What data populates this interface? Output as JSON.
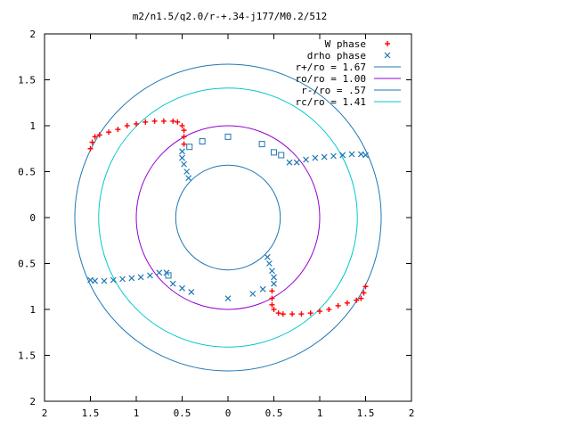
{
  "chart_data": {
    "type": "scatter",
    "title": "m2/n1.5/q2.0/r-+.34-j177/M0.2/512",
    "xlabel": "",
    "ylabel": "",
    "xlim": [
      -2,
      2
    ],
    "ylim": [
      -2,
      2
    ],
    "grid": false,
    "legend_position": "top-right",
    "xticks": [
      -2,
      -1.5,
      -1,
      -0.5,
      0,
      0.5,
      1,
      1.5,
      2
    ],
    "xtick_labels": [
      "2",
      "1.5",
      "1",
      "0.5",
      "0",
      "0.5",
      "1",
      "1.5",
      "2"
    ],
    "yticks": [
      2,
      1.5,
      1,
      0.5,
      0,
      -0.5,
      -1,
      -1.5,
      -2
    ],
    "ytick_labels": [
      "2",
      "1.5",
      "1",
      "0.5",
      "0",
      "0.5",
      "1",
      "1.5",
      "2"
    ],
    "circles": [
      {
        "name": "r+/ro = 1.67",
        "radius": 1.67,
        "color": "#1f77b4"
      },
      {
        "name": "ro/ro = 1.00",
        "radius": 1.0,
        "color": "#9400d3"
      },
      {
        "name": "r-/ro = .57",
        "radius": 0.57,
        "color": "#1f77b4"
      },
      {
        "name": "rc/ro = 1.41",
        "radius": 1.41,
        "color": "#00c8c8"
      }
    ],
    "series": [
      {
        "name": "W phase",
        "marker": "plus",
        "color": "#ff0000",
        "points": [
          [
            -1.5,
            0.75
          ],
          [
            -1.48,
            0.82
          ],
          [
            -1.45,
            0.88
          ],
          [
            -1.4,
            0.9
          ],
          [
            -1.3,
            0.93
          ],
          [
            -1.2,
            0.96
          ],
          [
            -1.1,
            1.0
          ],
          [
            -1.0,
            1.02
          ],
          [
            -0.9,
            1.04
          ],
          [
            -0.8,
            1.05
          ],
          [
            -0.7,
            1.05
          ],
          [
            -0.6,
            1.05
          ],
          [
            -0.55,
            1.04
          ],
          [
            -0.5,
            1.0
          ],
          [
            -0.48,
            0.95
          ],
          [
            -0.48,
            0.88
          ],
          [
            -0.48,
            0.8
          ],
          [
            1.5,
            -0.75
          ],
          [
            1.48,
            -0.82
          ],
          [
            1.45,
            -0.88
          ],
          [
            1.4,
            -0.9
          ],
          [
            1.3,
            -0.93
          ],
          [
            1.2,
            -0.96
          ],
          [
            1.1,
            -1.0
          ],
          [
            1.0,
            -1.02
          ],
          [
            0.9,
            -1.04
          ],
          [
            0.8,
            -1.05
          ],
          [
            0.7,
            -1.05
          ],
          [
            0.6,
            -1.05
          ],
          [
            0.55,
            -1.04
          ],
          [
            0.5,
            -1.0
          ],
          [
            0.48,
            -0.95
          ],
          [
            0.48,
            -0.88
          ],
          [
            0.48,
            -0.8
          ]
        ]
      },
      {
        "name": "drho phase",
        "marker": "cross",
        "color": "#1f77b4",
        "points": [
          [
            -0.5,
            0.72
          ],
          [
            -0.5,
            0.65
          ],
          [
            -0.48,
            0.58
          ],
          [
            -0.45,
            0.5
          ],
          [
            -0.43,
            0.43
          ],
          [
            0.67,
            0.6
          ],
          [
            0.75,
            0.6
          ],
          [
            0.85,
            0.63
          ],
          [
            0.95,
            0.65
          ],
          [
            1.05,
            0.66
          ],
          [
            1.15,
            0.67
          ],
          [
            1.25,
            0.68
          ],
          [
            1.35,
            0.69
          ],
          [
            1.45,
            0.69
          ],
          [
            1.5,
            0.68
          ],
          [
            0.5,
            -0.72
          ],
          [
            0.5,
            -0.65
          ],
          [
            0.48,
            -0.58
          ],
          [
            0.45,
            -0.5
          ],
          [
            0.43,
            -0.43
          ],
          [
            -0.67,
            -0.6
          ],
          [
            -0.75,
            -0.6
          ],
          [
            -0.85,
            -0.63
          ],
          [
            -0.95,
            -0.65
          ],
          [
            -1.05,
            -0.66
          ],
          [
            -1.15,
            -0.67
          ],
          [
            -1.25,
            -0.68
          ],
          [
            -1.35,
            -0.69
          ],
          [
            -1.45,
            -0.69
          ],
          [
            -1.5,
            -0.68
          ],
          [
            -0.6,
            -0.72
          ],
          [
            -0.5,
            -0.77
          ],
          [
            -0.4,
            -0.81
          ],
          [
            0,
            -0.88
          ],
          [
            0.27,
            -0.83
          ],
          [
            0.38,
            -0.78
          ]
        ]
      },
      {
        "name": "",
        "marker": "square",
        "color": "#1f77b4",
        "points": [
          [
            -0.42,
            0.77
          ],
          [
            -0.28,
            0.83
          ],
          [
            0.0,
            0.88
          ],
          [
            0.37,
            0.8
          ],
          [
            0.5,
            0.71
          ],
          [
            0.58,
            0.68
          ],
          [
            -0.65,
            -0.63
          ]
        ]
      }
    ]
  }
}
